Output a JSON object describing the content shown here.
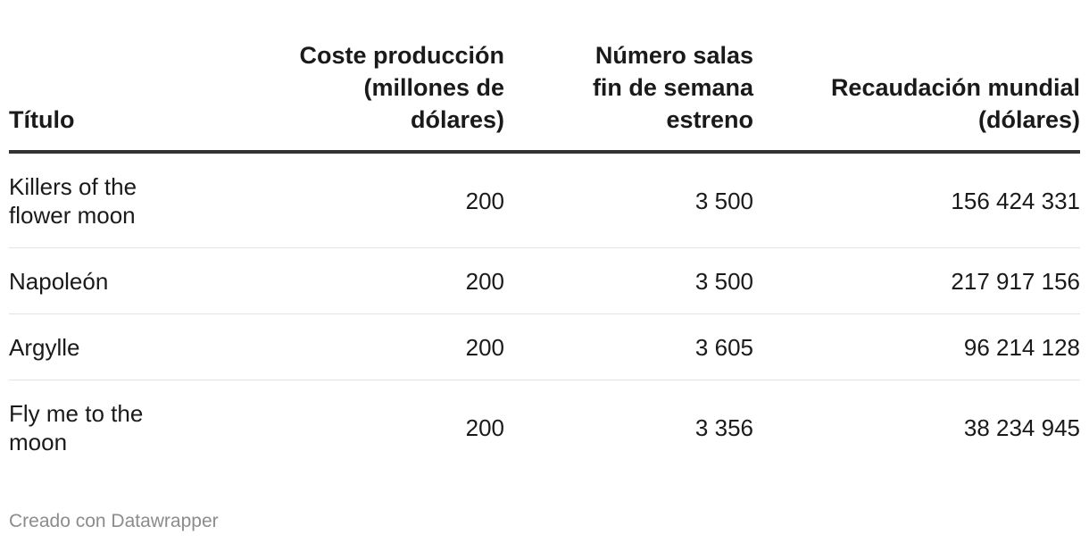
{
  "chart_data": {
    "type": "table",
    "columns": [
      "Título",
      "Coste producción (millones de dólares)",
      "Número salas fin de semana estreno",
      "Recaudación mundial (dólares)"
    ],
    "rows": [
      {
        "titulo": "Killers of the flower moon",
        "coste": "200",
        "salas": "3 500",
        "recaudacion": "156 424 331"
      },
      {
        "titulo": "Napoleón",
        "coste": "200",
        "salas": "3 500",
        "recaudacion": "217 917 156"
      },
      {
        "titulo": "Argylle",
        "coste": "200",
        "salas": "3 605",
        "recaudacion": "96 214 128"
      },
      {
        "titulo": "Fly me to the moon",
        "coste": "200",
        "salas": "3 356",
        "recaudacion": "38 234 945"
      }
    ]
  },
  "footer": {
    "credit": "Creado con Datawrapper"
  }
}
